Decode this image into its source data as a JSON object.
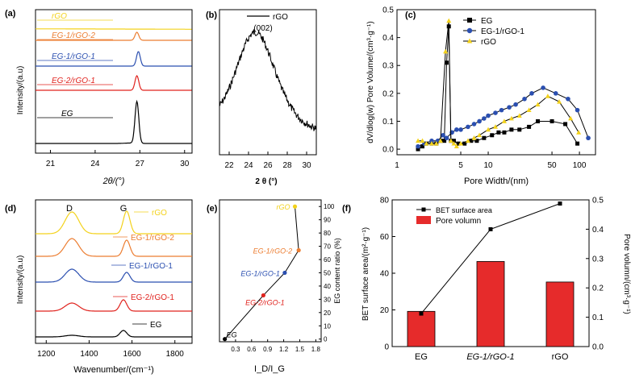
{
  "panels": [
    {
      "id": "a",
      "label": "(a)"
    },
    {
      "id": "b",
      "label": "(b)"
    },
    {
      "id": "c",
      "label": "(c)"
    },
    {
      "id": "d",
      "label": "(d)"
    },
    {
      "id": "e",
      "label": "(e)"
    },
    {
      "id": "f",
      "label": "(f)"
    }
  ],
  "colors": {
    "EG": "#000000",
    "EG-1/rGO-1": "#2b4fb0",
    "EG-1/rGO-2": "#ec7d31",
    "EG-2/rGO-1": "#e0231e",
    "rGO": "#f3d21c",
    "bar": "#e62b2b"
  },
  "chart_data": [
    {
      "panel": "a",
      "type": "line",
      "xlabel": "2θ/(°)",
      "ylabel": "Intensity/(a.u)",
      "xlim": [
        20,
        30.5
      ],
      "xticks": [
        21,
        24,
        27,
        30
      ],
      "series": [
        {
          "name": "EG",
          "peak": 26.8
        },
        {
          "name": "EG-2/rGO-1",
          "peak": 26.8
        },
        {
          "name": "EG-1/rGO-1",
          "peak": 26.9
        },
        {
          "name": "EG-1/rGO-2",
          "peak": 26.8
        },
        {
          "name": "rGO",
          "peak": null
        }
      ]
    },
    {
      "panel": "b",
      "type": "line",
      "xlabel": "2 θ (°)",
      "legend": "rGO",
      "annotation": "(002)",
      "xlim": [
        21,
        31
      ],
      "xticks": [
        22,
        24,
        26,
        28,
        30
      ],
      "series": [
        {
          "name": "rGO",
          "peak": 24.7
        }
      ]
    },
    {
      "panel": "c",
      "type": "line",
      "xlabel": "Pore Width/(nm)",
      "ylabel": "dV/dlog(w) Pore Volume/(cm³·g⁻¹)",
      "xscale": "log",
      "xlim": [
        1,
        150
      ],
      "ylim": [
        -0.02,
        0.5
      ],
      "xticks": [
        1,
        5,
        10,
        50,
        100
      ],
      "yticks": [
        0.0,
        0.1,
        0.2,
        0.3,
        0.4,
        0.5
      ],
      "series": [
        {
          "name": "EG",
          "x": [
            1.7,
            1.9,
            2.1,
            2.4,
            2.7,
            3.0,
            3.3,
            3.5,
            3.7,
            3.9,
            4.2,
            4.7,
            5.5,
            6.5,
            7.5,
            9,
            11,
            13,
            15,
            18,
            22,
            28,
            35,
            50,
            70,
            95
          ],
          "y": [
            0.0,
            0.01,
            0.02,
            0.02,
            0.02,
            0.03,
            0.03,
            0.31,
            0.44,
            0.03,
            0.03,
            0.02,
            0.02,
            0.03,
            0.03,
            0.04,
            0.05,
            0.06,
            0.06,
            0.07,
            0.07,
            0.08,
            0.1,
            0.1,
            0.09,
            0.02
          ]
        },
        {
          "name": "EG-1/rGO-1",
          "x": [
            1.7,
            2.0,
            2.4,
            2.8,
            3.2,
            3.5,
            4.0,
            4.5,
            5,
            6,
            7,
            8,
            9,
            10,
            12,
            14,
            17,
            20,
            25,
            30,
            40,
            55,
            75,
            95,
            125
          ],
          "y": [
            0.01,
            0.02,
            0.03,
            0.03,
            0.05,
            0.04,
            0.06,
            0.07,
            0.07,
            0.08,
            0.09,
            0.1,
            0.11,
            0.12,
            0.13,
            0.14,
            0.15,
            0.16,
            0.18,
            0.2,
            0.22,
            0.2,
            0.18,
            0.14,
            0.04
          ]
        },
        {
          "name": "rGO",
          "x": [
            1.7,
            1.9,
            2.1,
            2.4,
            2.7,
            3.0,
            3.4,
            3.7,
            3.9,
            4.2,
            4.5,
            5,
            6,
            7,
            8,
            10,
            12,
            15,
            18,
            22,
            28,
            35,
            45,
            60,
            80,
            98
          ],
          "y": [
            0.03,
            0.03,
            0.02,
            0.02,
            0.02,
            0.03,
            0.35,
            0.46,
            0.03,
            0.02,
            0.01,
            0.02,
            0.03,
            0.04,
            0.05,
            0.07,
            0.08,
            0.1,
            0.11,
            0.12,
            0.14,
            0.16,
            0.19,
            0.17,
            0.11,
            0.06
          ]
        }
      ]
    },
    {
      "panel": "d",
      "type": "line",
      "xlabel": "Wavenumber/(cm⁻¹)",
      "ylabel": "Intensity/(a.u)",
      "xlim": [
        1150,
        1880
      ],
      "xticks": [
        1200,
        1400,
        1600,
        1800
      ],
      "annotations": [
        "D",
        "G"
      ],
      "series": [
        {
          "name": "EG",
          "D": 1320,
          "G": 1560
        },
        {
          "name": "EG-2/rGO-1",
          "D": 1320,
          "G": 1560
        },
        {
          "name": "EG-1/rGO-1",
          "D": 1320,
          "G": 1575
        },
        {
          "name": "EG-1/rGO-2",
          "D": 1320,
          "G": 1575
        },
        {
          "name": "rGO",
          "D": 1320,
          "G": 1575
        }
      ]
    },
    {
      "panel": "e",
      "type": "line",
      "xlabel": "I_D/I_G",
      "ylabel": "EG content ratio (%)",
      "xlim": [
        0,
        1.9
      ],
      "ylim": [
        -2,
        105
      ],
      "xticks": [
        0.3,
        0.6,
        0.9,
        1.2,
        1.5,
        1.8
      ],
      "yticks": [
        0,
        10,
        20,
        30,
        40,
        50,
        60,
        70,
        80,
        90,
        100
      ],
      "points": [
        {
          "label": "EG",
          "x": 0.1,
          "y": 0
        },
        {
          "label": "EG-2/rGO-1",
          "x": 0.82,
          "y": 33
        },
        {
          "label": "EG-1/rGO-1",
          "x": 1.22,
          "y": 50
        },
        {
          "label": "EG-1/rGO-2",
          "x": 1.48,
          "y": 67
        },
        {
          "label": "rGO",
          "x": 1.41,
          "y": 100
        }
      ]
    },
    {
      "panel": "f",
      "type": "bar",
      "categories": [
        "EG",
        "EG-1/rGO-1",
        "rGO"
      ],
      "ylabel_left": "BET surface area/(m²·g⁻¹)",
      "ylabel_right": "Pore volumn/(cm³·g⁻¹)",
      "ylim_left": [
        0,
        80
      ],
      "ylim_right": [
        0,
        0.5
      ],
      "yticks_left": [
        0,
        20,
        40,
        60,
        80
      ],
      "yticks_right": [
        0.0,
        0.1,
        0.2,
        0.3,
        0.4,
        0.5
      ],
      "series": [
        {
          "name": "BET surface area",
          "type": "line",
          "values": [
            18,
            64,
            78
          ]
        },
        {
          "name": "Pore volumn",
          "type": "bar",
          "values": [
            0.12,
            0.29,
            0.22
          ]
        }
      ],
      "legend": [
        "BET surface area",
        "Pore volumn"
      ]
    }
  ]
}
